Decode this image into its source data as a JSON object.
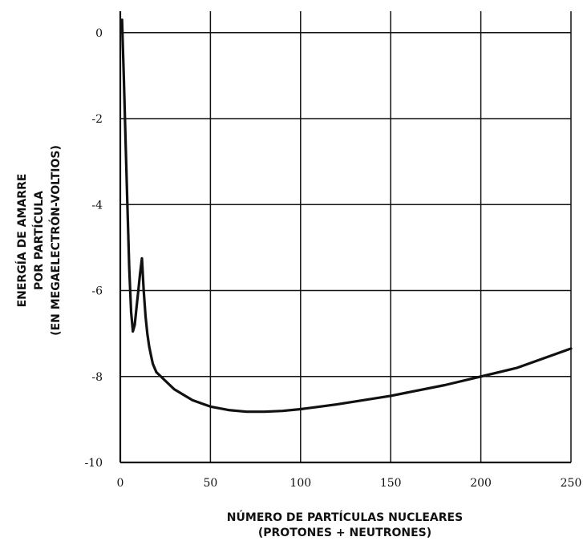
{
  "chart_data": {
    "type": "line",
    "title": "",
    "xlabel_lines": [
      "NÚMERO DE PARTÍCULAS NUCLEARES",
      "(PROTONES + NEUTRONES)"
    ],
    "ylabel_lines": [
      "ENERGÍA DE AMARRE",
      "POR PARTÍCULA",
      "(EN MEGAELECTRÓN-VOLTIOS)"
    ],
    "xlim": [
      0,
      250
    ],
    "ylim": [
      -10,
      0.5
    ],
    "grid": true,
    "xticks": [
      0,
      50,
      100,
      150,
      200,
      250
    ],
    "yticks": [
      0,
      -2,
      -4,
      -6,
      -8,
      -10
    ],
    "xtick_labels": [
      "0",
      "50",
      "100",
      "150",
      "200",
      "250"
    ],
    "ytick_labels": [
      "0",
      "-2",
      "-4",
      "-6",
      "-8",
      "-10"
    ],
    "series": [
      {
        "x": [
          1,
          2,
          3,
          4,
          5,
          6,
          7,
          8,
          9,
          10,
          11,
          12,
          13,
          14,
          15,
          16,
          17,
          18,
          19,
          20
        ],
        "y": [
          0.3,
          -1.1,
          -2.6,
          -4.1,
          -5.5,
          -6.5,
          -6.95,
          -6.8,
          -6.4,
          -6.0,
          -5.6,
          -5.25,
          -6.0,
          -6.6,
          -7.0,
          -7.3,
          -7.5,
          -7.7,
          -7.8,
          -7.9
        ]
      },
      {
        "x": [
          20,
          25,
          30,
          40,
          50,
          60,
          70,
          80,
          90,
          100,
          120,
          150,
          180,
          200,
          220,
          250
        ],
        "y": [
          -7.9,
          -8.1,
          -8.3,
          -8.55,
          -8.7,
          -8.78,
          -8.82,
          -8.82,
          -8.8,
          -8.76,
          -8.65,
          -8.45,
          -8.2,
          -8.0,
          -7.8,
          -7.35
        ]
      }
    ]
  }
}
